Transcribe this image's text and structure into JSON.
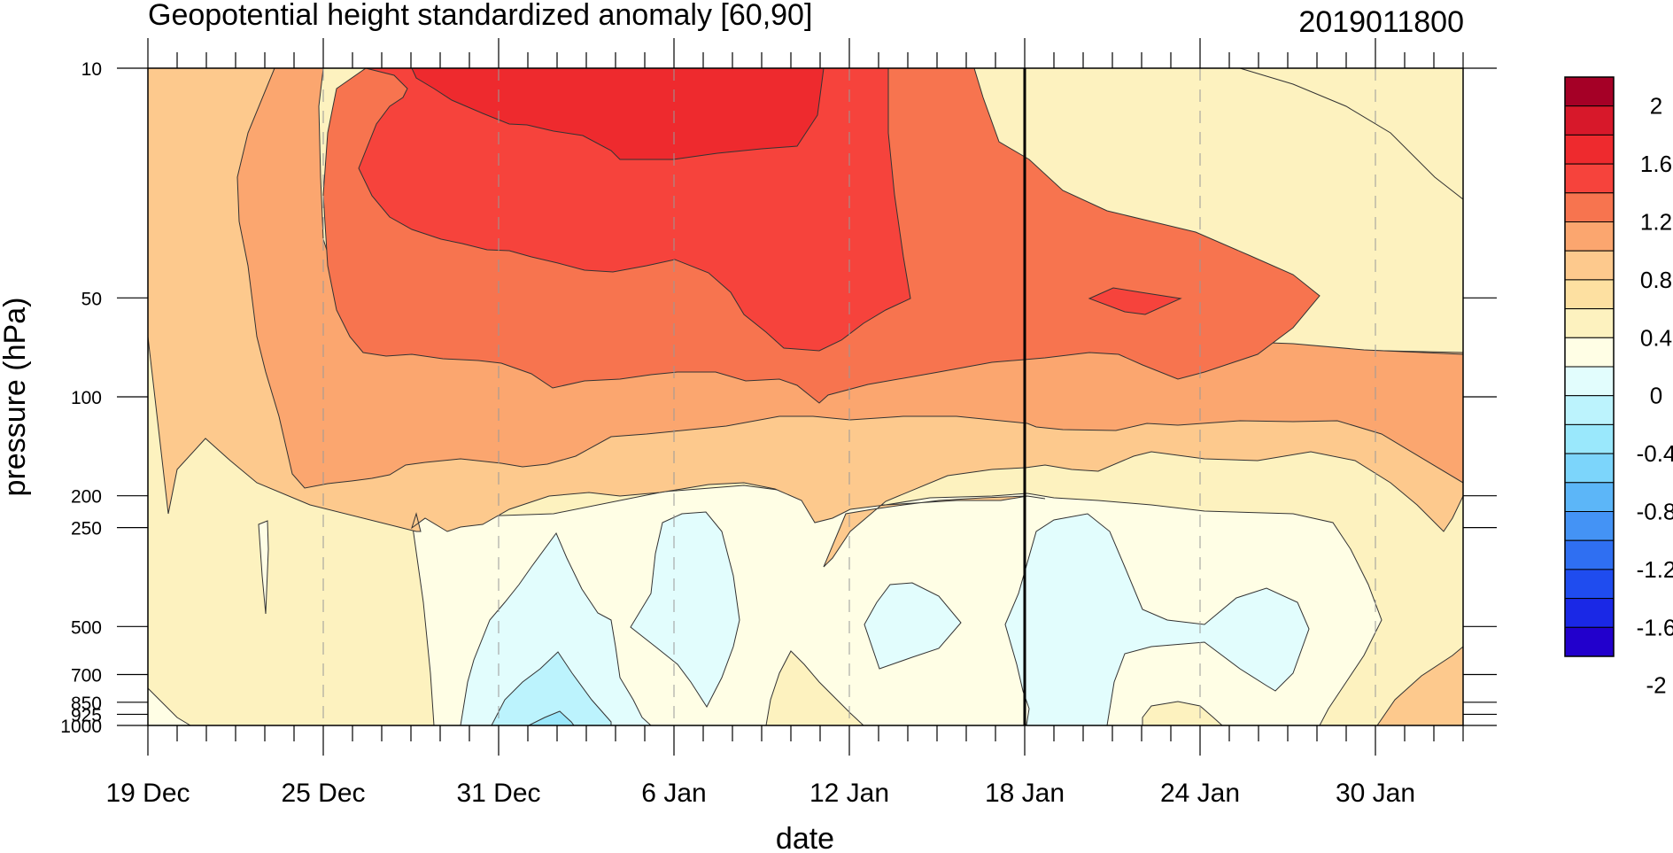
{
  "chart_data": {
    "type": "heatmap",
    "title": "Geopotential height standardized anomaly [60,90]",
    "timestamp_label": "2019011800",
    "xlabel": "date",
    "ylabel": "pressure (hPa)",
    "x_tick_labels": [
      "19 Dec",
      "25 Dec",
      "31 Dec",
      "6 Jan",
      "12 Jan",
      "18 Jan",
      "24 Jan",
      "30 Jan"
    ],
    "x_tick_days": [
      0,
      6,
      12,
      18,
      24,
      30,
      36,
      42
    ],
    "x_range_days": [
      0,
      45
    ],
    "y_levels_hPa": [
      10,
      50,
      100,
      200,
      250,
      500,
      700,
      850,
      925,
      1000
    ],
    "y_tick_labels": [
      "10",
      "50",
      "100",
      "200",
      "250",
      "500",
      "700",
      "850",
      "925",
      "1000"
    ],
    "y_log_scale": true,
    "y_range_hPa": [
      10,
      1000
    ],
    "reference_line_day": 30,
    "colorbar": {
      "labels": [
        "2",
        "1.6",
        "1.2",
        "0.8",
        "0.4",
        "0",
        "-0.4",
        "-0.8",
        "-1.2",
        "-1.6",
        "-2"
      ],
      "colors": [
        "#a50026",
        "#d7182a",
        "#ee2a2e",
        "#f6433c",
        "#f7744f",
        "#fba66f",
        "#fdc98d",
        "#fde0a1",
        "#fdf2bf",
        "#fffee5",
        "#e2fdfd",
        "#bcf3fd",
        "#9ae8fc",
        "#7cd5fb",
        "#5cb6f8",
        "#4493f5",
        "#2f6ff2",
        "#1f4cef",
        "#1a28e6",
        "#2200cc"
      ]
    }
  }
}
